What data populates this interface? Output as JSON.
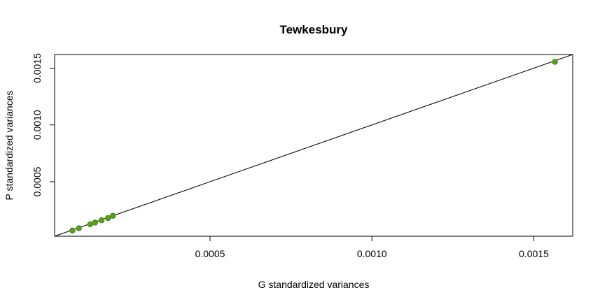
{
  "chart_data": {
    "type": "scatter",
    "title": "Tewkesbury",
    "xlabel": "G standardized variances",
    "ylabel": "P standardized variances",
    "xlim": [
      2e-05,
      0.00162
    ],
    "ylim": [
      2e-05,
      0.00162
    ],
    "xticks": [
      {
        "value": 0.0005,
        "label": "0.0005"
      },
      {
        "value": 0.001,
        "label": "0.0010"
      },
      {
        "value": 0.0015,
        "label": "0.0015"
      }
    ],
    "yticks": [
      {
        "value": 0.0005,
        "label": "0.0005"
      },
      {
        "value": 0.001,
        "label": "0.0010"
      },
      {
        "value": 0.0015,
        "label": "0.0015"
      }
    ],
    "reference_line": {
      "intercept": 0,
      "slope": 1,
      "color": "#000000"
    },
    "point_color": "#5aa01e",
    "point_edge_color": "#3f7a10",
    "points": [
      {
        "x": 7.5e-05,
        "y": 7e-05
      },
      {
        "x": 9.5e-05,
        "y": 9e-05
      },
      {
        "x": 0.00013,
        "y": 0.000125
      },
      {
        "x": 0.000145,
        "y": 0.00014
      },
      {
        "x": 0.000165,
        "y": 0.00016
      },
      {
        "x": 0.000185,
        "y": 0.00018
      },
      {
        "x": 0.0002,
        "y": 0.0002
      },
      {
        "x": 0.001565,
        "y": 0.001555
      }
    ],
    "grid": false,
    "legend": "none"
  }
}
